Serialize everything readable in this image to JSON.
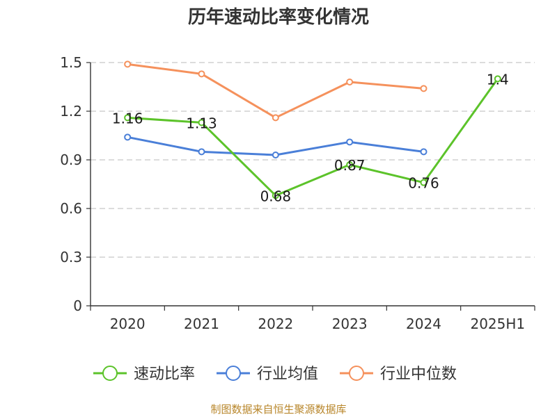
{
  "chart_data": {
    "type": "line",
    "title": "历年速动比率变化情况",
    "categories": [
      "2020",
      "2021",
      "2022",
      "2023",
      "2024",
      "2025H1"
    ],
    "ylim": [
      0,
      1.5
    ],
    "yticks": [
      "0",
      "0.3",
      "0.6",
      "0.9",
      "1.2",
      "1.5"
    ],
    "grid": true,
    "legend_position": "bottom",
    "series": [
      {
        "name": "速动比率",
        "color": "#5cc32a",
        "values": [
          1.16,
          1.13,
          0.68,
          0.87,
          0.76,
          1.4
        ],
        "labels": [
          "1.16",
          "1.13",
          "0.68",
          "0.87",
          "0.76",
          "1.4"
        ]
      },
      {
        "name": "行业均值",
        "color": "#4a7fd8",
        "values": [
          1.04,
          0.95,
          0.93,
          1.01,
          0.95,
          null
        ]
      },
      {
        "name": "行业中位数",
        "color": "#f5915c",
        "values": [
          1.49,
          1.43,
          1.16,
          1.38,
          1.34,
          null
        ]
      }
    ]
  },
  "source_text": "制图数据来自恒生聚源数据库"
}
